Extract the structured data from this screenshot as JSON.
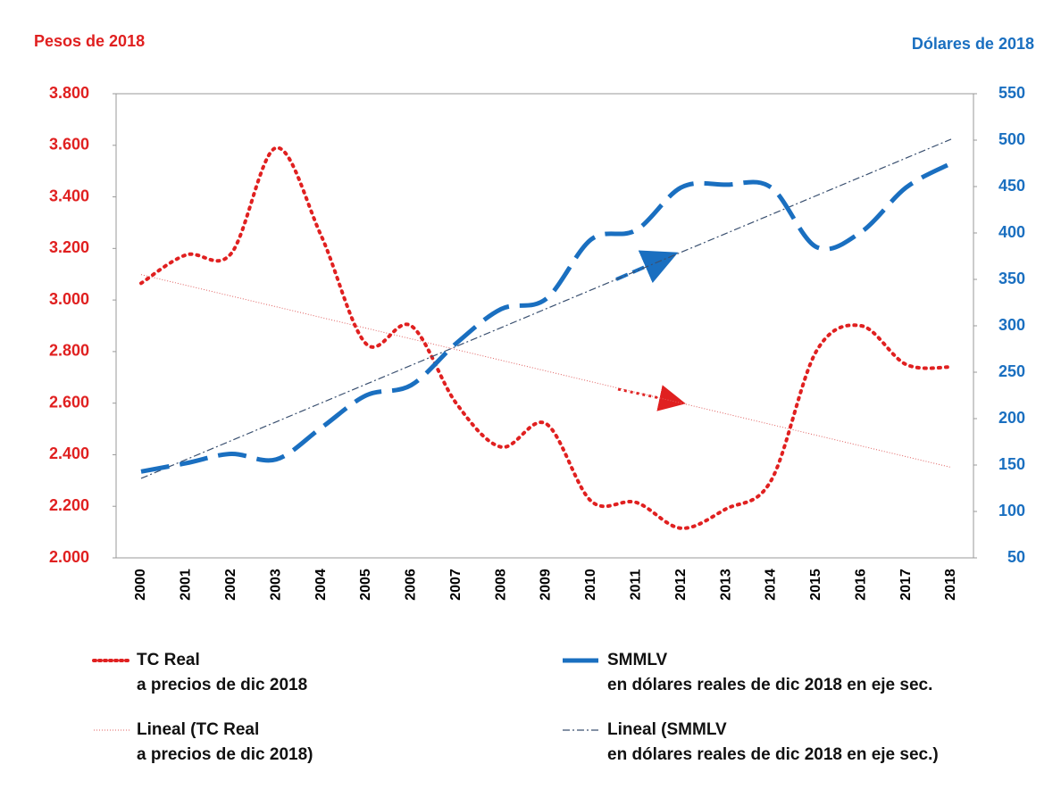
{
  "chart_data": {
    "type": "line",
    "y_label": "Pesos de 2018",
    "y2_label": "Dólares de 2018",
    "categories": [
      "2000",
      "2001",
      "2002",
      "2003",
      "2004",
      "2005",
      "2006",
      "2007",
      "2008",
      "2009",
      "2010",
      "2011",
      "2012",
      "2013",
      "2014",
      "2015",
      "2016",
      "2017",
      "2018"
    ],
    "series": [
      {
        "name": [
          "TC Real",
          "a precios de dic 2018"
        ],
        "color": "#e02020",
        "style": "dotted",
        "axis": "y",
        "values": [
          3065,
          3175,
          3180,
          3590,
          3250,
          2830,
          2900,
          2600,
          2430,
          2520,
          2220,
          2215,
          2115,
          2190,
          2300,
          2800,
          2900,
          2750,
          2740
        ],
        "trendline": {
          "name": [
            "Lineal (TC Real",
            "a precios de dic 2018)"
          ],
          "color": "#e06060",
          "style": "dotted"
        }
      },
      {
        "name": [
          "SMMLV",
          "en dólares reales de dic 2018 en eje sec."
        ],
        "color": "#1a6fc0",
        "style": "dashed",
        "axis": "y2",
        "values": [
          143,
          152,
          162,
          156,
          190,
          225,
          236,
          281,
          318,
          329,
          393,
          403,
          449,
          452,
          449,
          385,
          401,
          449,
          475
        ],
        "trendline": {
          "name": [
            "Lineal (SMMLV",
            "en dólares reales de dic 2018 en eje sec.)"
          ],
          "color": "#3a5070",
          "style": "dashdot"
        }
      }
    ],
    "ylim": [
      2000,
      3800
    ],
    "yticks": [
      {
        "value": 2000,
        "label": "2.000"
      },
      {
        "value": 2200,
        "label": "2.200"
      },
      {
        "value": 2400,
        "label": "2.400"
      },
      {
        "value": 2600,
        "label": "2.600"
      },
      {
        "value": 2800,
        "label": "2.800"
      },
      {
        "value": 3000,
        "label": "3.000"
      },
      {
        "value": 3200,
        "label": "3.200"
      },
      {
        "value": 3400,
        "label": "3.400"
      },
      {
        "value": 3600,
        "label": "3.600"
      },
      {
        "value": 3800,
        "label": "3.800"
      }
    ],
    "y2lim": [
      50,
      550
    ],
    "y2ticks": [
      50,
      100,
      150,
      200,
      250,
      300,
      350,
      400,
      450,
      500,
      550
    ],
    "grid": false
  }
}
